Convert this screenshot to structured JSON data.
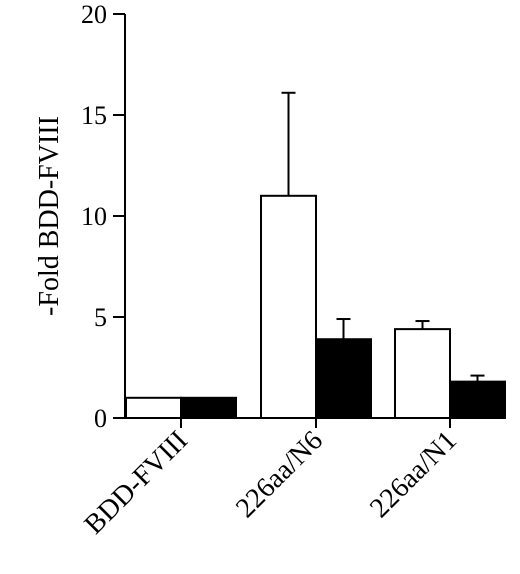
{
  "chart_data": {
    "type": "bar",
    "title": "",
    "xlabel": "",
    "ylabel": "-Fold BDD-FVIII",
    "ylim": [
      0,
      20
    ],
    "yticks": [
      0,
      5,
      10,
      15,
      20
    ],
    "ytick_labels": [
      "0",
      "5",
      "10",
      "15",
      "20"
    ],
    "categories": [
      "BDD-FVIII",
      "226aa/N6",
      "226aa/N1"
    ],
    "series": [
      {
        "values": [
          1.0,
          11.0,
          4.4
        ],
        "errors": [
          0,
          5.1,
          0.4
        ],
        "fill": "#ffffff"
      },
      {
        "values": [
          1.0,
          3.9,
          1.8
        ],
        "errors": [
          0,
          1.0,
          0.3
        ],
        "fill": "#000000"
      }
    ],
    "grid": false,
    "legend": "none"
  }
}
